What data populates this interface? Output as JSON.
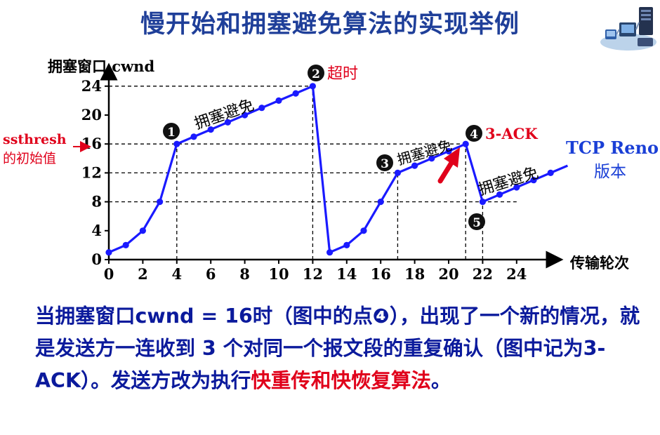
{
  "title": "慢开始和拥塞避免算法的实现举例",
  "chart_data": {
    "type": "line",
    "ylabel": "拥塞窗口 cwnd",
    "xlabel": "传输轮次",
    "x_ticks": [
      0,
      2,
      4,
      6,
      8,
      10,
      12,
      14,
      16,
      18,
      20,
      22,
      24
    ],
    "y_ticks": [
      0,
      4,
      8,
      12,
      16,
      20,
      24
    ],
    "xlim": [
      0,
      27
    ],
    "ylim": [
      0,
      26
    ],
    "series": [
      {
        "points": [
          [
            0,
            1
          ],
          [
            1,
            2
          ],
          [
            2,
            4
          ],
          [
            3,
            8
          ],
          [
            4,
            16
          ],
          [
            5,
            17
          ],
          [
            6,
            18
          ],
          [
            7,
            19
          ],
          [
            8,
            20
          ],
          [
            9,
            21
          ],
          [
            10,
            22
          ],
          [
            11,
            23
          ],
          [
            12,
            24
          ],
          [
            13,
            1
          ],
          [
            14,
            2
          ],
          [
            15,
            4
          ],
          [
            16,
            8
          ],
          [
            17,
            12
          ],
          [
            18,
            13
          ],
          [
            19,
            14
          ],
          [
            20,
            15
          ],
          [
            21,
            16
          ],
          [
            22,
            8
          ],
          [
            23,
            9
          ],
          [
            24,
            10
          ],
          [
            25,
            11
          ],
          [
            26,
            12
          ]
        ],
        "extension": [
          [
            26,
            12
          ],
          [
            27,
            13
          ]
        ]
      }
    ],
    "reference_lines": [
      {
        "y": 24,
        "x_to": 12
      },
      {
        "y": 16,
        "x_to": 21
      },
      {
        "y": 12,
        "x_to": 17
      },
      {
        "y": 8,
        "x_to": 24
      },
      {
        "x": 4,
        "y_to": 16
      },
      {
        "x": 12,
        "y_to": 24
      },
      {
        "x": 17,
        "y_to": 12
      },
      {
        "x": 21,
        "y_to": 16
      },
      {
        "x": 22,
        "y_to": 8
      }
    ],
    "annotations": {
      "ssthresh_line1": "ssthresh",
      "ssthresh_line2": "的初始值",
      "ca1": "拥塞避免",
      "ca2": "拥塞避免",
      "ca3": "拥塞避免",
      "timeout": "超时",
      "ack3": "3-ACK",
      "reno1": "TCP Reno",
      "reno2": "版本",
      "marker1": "1",
      "marker2": "2",
      "marker3": "3",
      "marker4": "4",
      "marker5": "5"
    },
    "colors": {
      "line": "#1a1aff",
      "red": "#e0001b",
      "navy": "#1f3f99",
      "blue": "#1a1aff"
    }
  },
  "description": {
    "part1": "当拥塞窗口cwnd = 16时（图中的点❹），出现了一个新的情况，就是发送方一连收到 3 个对同一个报文段的重复确认（图中记为3-ACK）。发送方改为执行",
    "part2": "快重传和快恢复算法",
    "part3": "。"
  }
}
